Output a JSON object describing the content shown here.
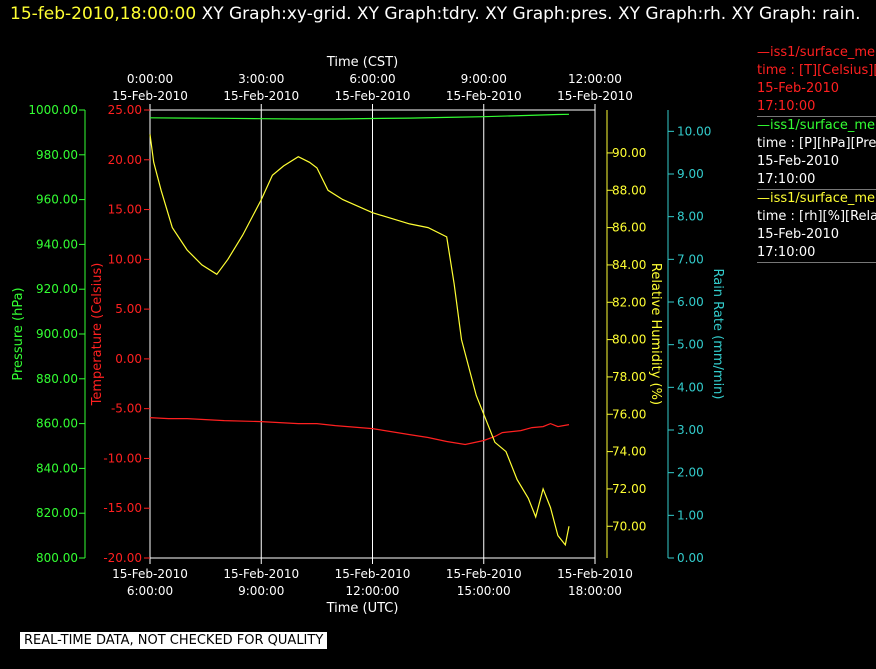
{
  "header": {
    "timestamp": "15-feb-2010,18:00:00",
    "title": "XY Graph:xy-grid.  XY Graph:tdry.  XY Graph:pres.  XY Graph:rh.  XY Graph: rain."
  },
  "legend": [
    {
      "name": "—iss1/surface_me",
      "units": "time : [T][Celsius][T",
      "date": "15-Feb-2010",
      "time": "17:10:00",
      "color": "#ff2020"
    },
    {
      "name": "—iss1/surface_me",
      "units": "time : [P][hPa][Pres",
      "date": "15-Feb-2010",
      "time": "17:10:00",
      "color": "#33ff33"
    },
    {
      "name": "—iss1/surface_me",
      "units": "time : [rh][%][Relati",
      "date": "15-Feb-2010",
      "time": "17:10:00",
      "color": "#ffff33"
    }
  ],
  "banner": "REAL-TIME DATA, NOT CHECKED FOR QUALITY",
  "chart_data": {
    "type": "line",
    "grid": "vertical lines only",
    "x_top": {
      "label": "Time (CST)",
      "ticks": [
        {
          "time": "0:00:00",
          "date": "15-Feb-2010"
        },
        {
          "time": "3:00:00",
          "date": "15-Feb-2010"
        },
        {
          "time": "6:00:00",
          "date": "15-Feb-2010"
        },
        {
          "time": "9:00:00",
          "date": "15-Feb-2010"
        },
        {
          "time": "12:00:00",
          "date": "15-Feb-2010"
        }
      ]
    },
    "x_bottom": {
      "label": "Time (UTC)",
      "range": [
        6,
        18
      ],
      "ticks": [
        {
          "hour": 6,
          "date": "15-Feb-2010",
          "time": "6:00:00"
        },
        {
          "hour": 9,
          "date": "15-Feb-2010",
          "time": "9:00:00"
        },
        {
          "hour": 12,
          "date": "15-Feb-2010",
          "time": "12:00:00"
        },
        {
          "hour": 15,
          "date": "15-Feb-2010",
          "time": "15:00:00"
        },
        {
          "hour": 18,
          "date": "15-Feb-2010",
          "time": "18:00:00"
        }
      ]
    },
    "axes": {
      "pressure": {
        "label": "Pressure (hPa)",
        "color": "#33ff33",
        "range": [
          800,
          1000
        ],
        "ticks": [
          "800.00",
          "820.00",
          "840.00",
          "860.00",
          "880.00",
          "900.00",
          "920.00",
          "940.00",
          "960.00",
          "980.00",
          "1000.00"
        ]
      },
      "temperature": {
        "label": "Temperature (Celsius)",
        "color": "#ff2020",
        "range": [
          -20,
          25
        ],
        "ticks": [
          "-20.00",
          "-15.00",
          "-10.00",
          "-5.00",
          "0.00",
          "5.00",
          "10.00",
          "15.00",
          "20.00",
          "25.00"
        ]
      },
      "humidity": {
        "label": "Relative Humidity (%)",
        "color": "#ffff33",
        "range": [
          68.3,
          92.3
        ],
        "ticks": [
          "70.00",
          "72.00",
          "74.00",
          "76.00",
          "78.00",
          "80.00",
          "82.00",
          "84.00",
          "86.00",
          "88.00",
          "90.00"
        ]
      },
      "rain": {
        "label": "Rain Rate (mm/min)",
        "color": "#33cccc",
        "range": [
          0,
          10.5
        ],
        "ticks": [
          "0.00",
          "1.00",
          "2.00",
          "3.00",
          "4.00",
          "5.00",
          "6.00",
          "7.00",
          "8.00",
          "9.00",
          "10.00"
        ]
      }
    },
    "series": [
      {
        "name": "iss1/surface_me T",
        "axis": "temperature",
        "color": "#ff2020",
        "x": [
          6.0,
          6.5,
          7.0,
          8.0,
          9.0,
          10.0,
          10.5,
          11.0,
          12.0,
          13.0,
          13.5,
          14.0,
          14.5,
          15.0,
          15.3,
          15.5,
          16.0,
          16.3,
          16.6,
          16.8,
          17.0,
          17.3
        ],
        "y": [
          -5.9,
          -6.0,
          -6.0,
          -6.2,
          -6.3,
          -6.5,
          -6.5,
          -6.7,
          -7.0,
          -7.6,
          -7.9,
          -8.3,
          -8.6,
          -8.2,
          -7.8,
          -7.4,
          -7.2,
          -6.9,
          -6.8,
          -6.5,
          -6.8,
          -6.6
        ]
      },
      {
        "name": "iss1/surface_me P",
        "axis": "pressure",
        "color": "#33ff33",
        "x": [
          6.0,
          7.0,
          8.0,
          9.0,
          10.0,
          11.0,
          12.0,
          13.0,
          14.0,
          15.0,
          16.0,
          17.0,
          17.3
        ],
        "y": [
          996.5,
          996.4,
          996.3,
          996.1,
          996.0,
          996.0,
          996.2,
          996.4,
          996.7,
          997.0,
          997.5,
          998.0,
          998.1
        ]
      },
      {
        "name": "iss1/surface_me rh",
        "axis": "humidity",
        "color": "#ffff33",
        "x": [
          6.0,
          6.1,
          6.3,
          6.6,
          7.0,
          7.4,
          7.8,
          8.1,
          8.5,
          9.0,
          9.3,
          9.6,
          10.0,
          10.3,
          10.5,
          10.8,
          11.2,
          12.0,
          13.0,
          13.5,
          14.0,
          14.2,
          14.4,
          14.6,
          14.8,
          15.0,
          15.3,
          15.6,
          15.9,
          16.2,
          16.4,
          16.6,
          16.8,
          17.0,
          17.2,
          17.3
        ],
        "y": [
          91.0,
          89.5,
          88.0,
          86.0,
          84.8,
          84.0,
          83.5,
          84.3,
          85.6,
          87.5,
          88.8,
          89.3,
          89.8,
          89.5,
          89.2,
          88.0,
          87.5,
          86.8,
          86.2,
          86.0,
          85.5,
          83.0,
          80.0,
          78.5,
          77.0,
          76.0,
          74.5,
          74.0,
          72.5,
          71.5,
          70.5,
          72.0,
          71.0,
          69.5,
          69.0,
          70.0
        ]
      }
    ]
  }
}
